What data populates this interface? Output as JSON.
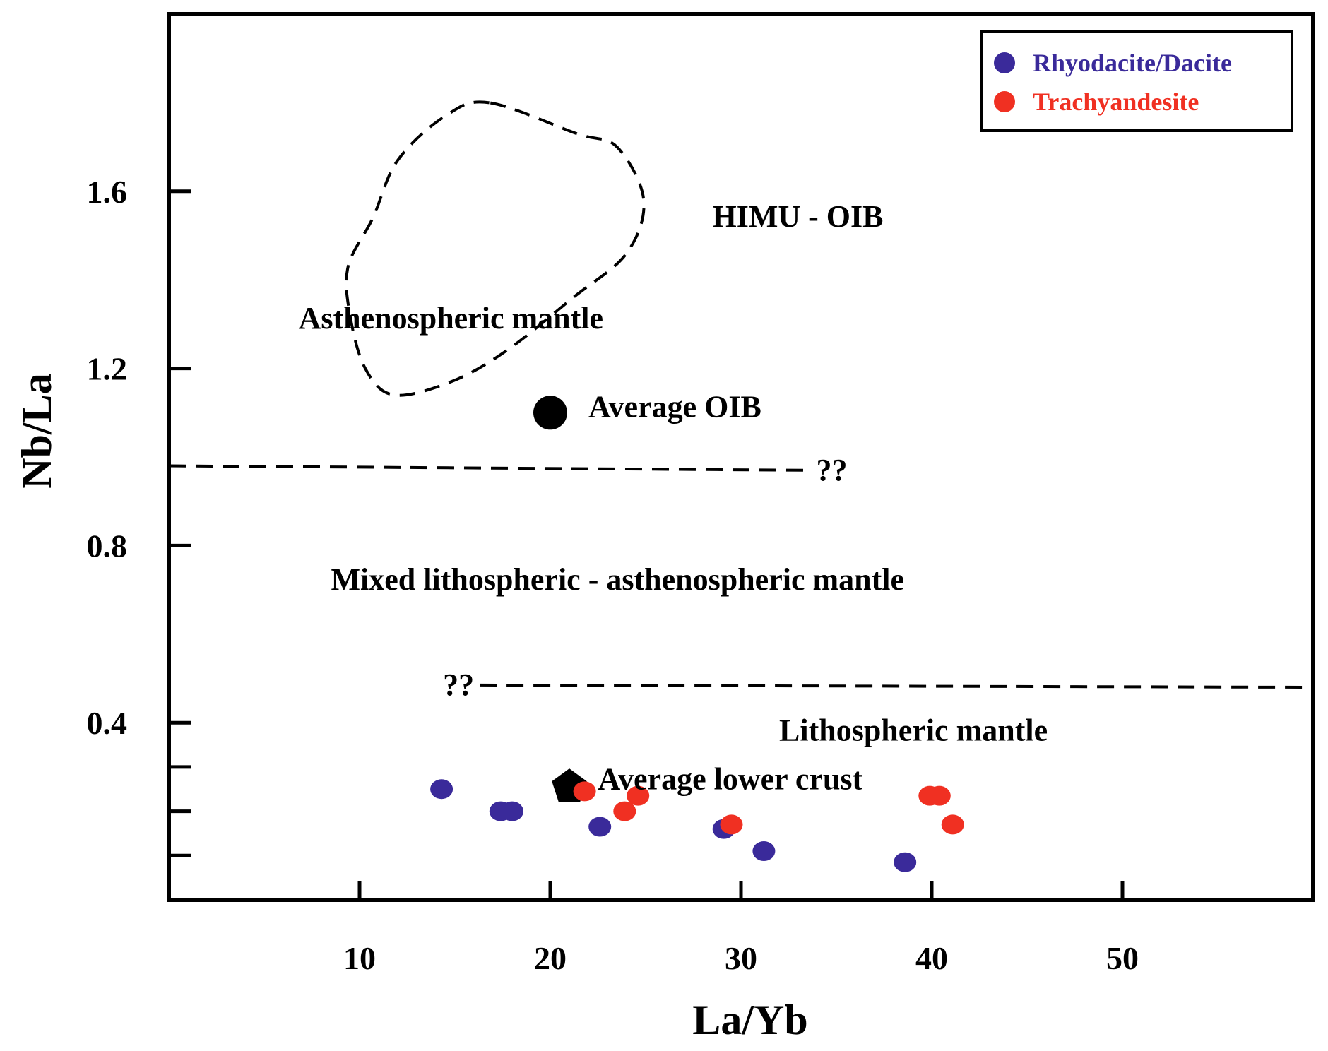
{
  "chart_data": {
    "type": "scatter",
    "title": "",
    "xlabel": "La/Yb",
    "ylabel": "Nb/La",
    "xlim": [
      0,
      60
    ],
    "ylim": [
      0,
      2
    ],
    "x_ticks": [
      10,
      20,
      30,
      40,
      50
    ],
    "y_ticks": [
      0.4,
      0.8,
      1.2,
      1.6
    ],
    "y_minor_ticks": [
      0.1,
      0.2,
      0.3
    ],
    "legend_position": "top-right",
    "colors": {
      "rhyodacite": "#3a2a9a",
      "trachyandesite": "#f03022",
      "axis": "#000000"
    },
    "series": [
      {
        "name": "Rhyodacite/Dacite",
        "color": "#3a2a9a",
        "points": [
          {
            "x": 14.3,
            "y": 0.25
          },
          {
            "x": 17.4,
            "y": 0.2
          },
          {
            "x": 18.0,
            "y": 0.2
          },
          {
            "x": 22.6,
            "y": 0.165
          },
          {
            "x": 29.1,
            "y": 0.16
          },
          {
            "x": 31.2,
            "y": 0.11
          },
          {
            "x": 38.6,
            "y": 0.085
          }
        ]
      },
      {
        "name": "Trachyandesite",
        "color": "#f03022",
        "points": [
          {
            "x": 21.8,
            "y": 0.245
          },
          {
            "x": 23.9,
            "y": 0.2
          },
          {
            "x": 24.6,
            "y": 0.235
          },
          {
            "x": 29.5,
            "y": 0.17
          },
          {
            "x": 39.9,
            "y": 0.235
          },
          {
            "x": 40.4,
            "y": 0.235
          },
          {
            "x": 41.1,
            "y": 0.17
          }
        ]
      }
    ],
    "reference_points": [
      {
        "name": "Average OIB",
        "x": 20.0,
        "y": 1.1,
        "marker": "circle"
      },
      {
        "name": "Average lower crust",
        "x": 21.0,
        "y": 0.255,
        "marker": "pentagon"
      }
    ],
    "boundaries": [
      {
        "name": "upper-boundary",
        "x": [
          0,
          33.5
        ],
        "y": [
          0.98,
          0.97
        ],
        "style": "dashed",
        "label": "??"
      },
      {
        "name": "lower-boundary",
        "x": [
          16.3,
          60
        ],
        "y": [
          0.485,
          0.48
        ],
        "style": "dashed",
        "label": "??"
      }
    ],
    "field_outline": {
      "name": "asthenospheric-mantle-field",
      "style": "dashed",
      "points": [
        [
          16.8,
          1.8
        ],
        [
          14.5,
          1.77
        ],
        [
          12.0,
          1.67
        ],
        [
          10.7,
          1.54
        ],
        [
          9.4,
          1.43
        ],
        [
          9.5,
          1.32
        ],
        [
          10.3,
          1.2
        ],
        [
          11.8,
          1.14
        ],
        [
          14.8,
          1.17
        ],
        [
          17.7,
          1.24
        ],
        [
          21.2,
          1.36
        ],
        [
          24.0,
          1.46
        ],
        [
          24.9,
          1.58
        ],
        [
          23.5,
          1.7
        ],
        [
          21.4,
          1.73
        ],
        [
          16.8,
          1.8
        ]
      ]
    },
    "region_labels": [
      {
        "text": "HIMU - OIB",
        "x": 28.5,
        "y": 1.52
      },
      {
        "text": "Asthenospheric mantle",
        "x": 6.8,
        "y": 1.29
      },
      {
        "text": "Average OIB",
        "x": 22.0,
        "y": 1.09
      },
      {
        "text": "Mixed lithospheric - asthenospheric mantle",
        "x": 8.5,
        "y": 0.7
      },
      {
        "text": "Lithospheric mantle",
        "x": 32.0,
        "y": 0.36
      },
      {
        "text": "Average lower crust",
        "x": 22.5,
        "y": 0.25
      }
    ],
    "legend": [
      "Rhyodacite/Dacite",
      "Trachyandesite"
    ]
  }
}
